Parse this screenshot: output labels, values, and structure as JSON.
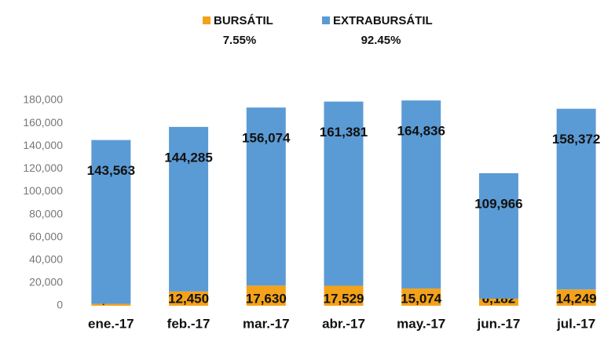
{
  "chart_data": {
    "type": "stacked_bar",
    "categories": [
      "ene.-17",
      "feb.-17",
      "mar.-17",
      "abr.-17",
      "may.-17",
      "jun.-17",
      "jul.-17"
    ],
    "series": [
      {
        "name": "BURSÁTIL",
        "share_label": "7.55%",
        "color": "#f4a21a",
        "values": [
          1650,
          12450,
          17630,
          17529,
          15074,
          6182,
          14249
        ],
        "value_labels": [
          "1,650",
          "12,450",
          "17,630",
          "17,529",
          "15,074",
          "6,182",
          "14,249"
        ]
      },
      {
        "name": "EXTRABURSÁTIL",
        "share_label": "92.45%",
        "color": "#5b9bd5",
        "values": [
          143563,
          144285,
          156074,
          161381,
          164836,
          109966,
          158372
        ],
        "value_labels": [
          "143,563",
          "144,285",
          "156,074",
          "161,381",
          "164,836",
          "109,966",
          "158,372"
        ]
      }
    ],
    "ylim": [
      0,
      180000
    ],
    "yticks": [
      0,
      {
        "value": 20000,
        "label": "20,000"
      },
      {
        "value": 40000,
        "label": "40,000"
      },
      {
        "value": 60000,
        "label": "60,000"
      },
      {
        "value": 80000,
        "label": "80,000"
      },
      {
        "value": 100000,
        "label": "100,000"
      },
      {
        "value": 120000,
        "label": "120,000"
      },
      {
        "value": 140000,
        "label": "140,000"
      },
      {
        "value": 160000,
        "label": "160,000"
      },
      {
        "value": 180000,
        "label": "180,000"
      }
    ],
    "grid": false,
    "legend": "top"
  }
}
